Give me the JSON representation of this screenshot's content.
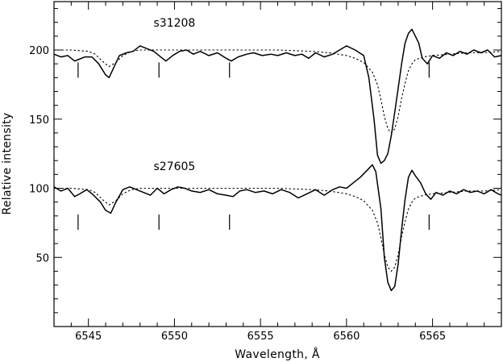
{
  "chart_data": {
    "type": "line",
    "title": "",
    "xlabel": "Wavelength, Å",
    "ylabel": "Relative intensity",
    "xlim": [
      6543,
      6569
    ],
    "ylim": [
      0,
      235
    ],
    "x_major_ticks": [
      6545,
      6550,
      6555,
      6560,
      6565
    ],
    "x_minor_step": 1,
    "y_major_ticks": [
      50,
      100,
      150,
      200
    ],
    "y_minor_step": 10,
    "grid": false,
    "legend": "none",
    "line_markers_x": [
      6544.4,
      6549.1,
      6553.2,
      6564.8
    ],
    "series": [
      {
        "name": "s31208",
        "label_pos": {
          "x": 6550,
          "y": 217
        },
        "marker_range": [
          180,
          191
        ],
        "observed": {
          "x": [
            6543.0,
            6543.4,
            6543.8,
            6544.2,
            6544.4,
            6544.8,
            6545.2,
            6545.6,
            6546.0,
            6546.2,
            6546.5,
            6546.8,
            6547.2,
            6547.6,
            6548.0,
            6548.4,
            6548.8,
            6549.2,
            6549.5,
            6549.9,
            6550.3,
            6550.7,
            6551.1,
            6551.5,
            6552.0,
            6552.5,
            6553.0,
            6553.3,
            6553.7,
            6554.2,
            6554.6,
            6555.1,
            6555.6,
            6556.0,
            6556.5,
            6557.0,
            6557.4,
            6557.8,
            6558.2,
            6558.7,
            6559.2,
            6559.6,
            6560.0,
            6560.5,
            6561.0,
            6561.3,
            6561.6,
            6561.8,
            6562.0,
            6562.2,
            6562.4,
            6562.6,
            6562.8,
            6563.0,
            6563.2,
            6563.4,
            6563.6,
            6563.8,
            6564.0,
            6564.2,
            6564.4,
            6564.7,
            6565.0,
            6565.4,
            6565.8,
            6566.2,
            6566.6,
            6567.0,
            6567.4,
            6567.8,
            6568.2,
            6568.6,
            6569.0
          ],
          "y": [
            197,
            195,
            196,
            192,
            193,
            195,
            195,
            190,
            182,
            180,
            188,
            196,
            198,
            199,
            203,
            201,
            199,
            195,
            192,
            196,
            199,
            200,
            197,
            199,
            196,
            198,
            194,
            192,
            195,
            197,
            198,
            196,
            197,
            196,
            198,
            196,
            197,
            194,
            198,
            195,
            197,
            200,
            203,
            200,
            196,
            180,
            150,
            124,
            118,
            120,
            125,
            138,
            155,
            172,
            190,
            205,
            212,
            215,
            210,
            205,
            194,
            190,
            196,
            194,
            198,
            196,
            199,
            197,
            200,
            198,
            200,
            195,
            196
          ]
        },
        "model": {
          "x": [
            6543.0,
            6544.0,
            6545.0,
            6545.4,
            6545.8,
            6546.0,
            6546.2,
            6546.6,
            6547.0,
            6547.5,
            6548.0,
            6550.0,
            6552.0,
            6554.0,
            6556.0,
            6558.0,
            6559.0,
            6560.0,
            6560.5,
            6561.0,
            6561.5,
            6561.8,
            6562.0,
            6562.2,
            6562.4,
            6562.6,
            6562.8,
            6563.0,
            6563.2,
            6563.4,
            6563.6,
            6563.8,
            6564.0,
            6564.5,
            6565.0,
            6566.0,
            6567.0,
            6568.0,
            6569.0
          ],
          "y": [
            200,
            200,
            199,
            197,
            192,
            190,
            188,
            191,
            196,
            199,
            200,
            200,
            200,
            200,
            200,
            199,
            198,
            196,
            194,
            191,
            184,
            175,
            164,
            152,
            143,
            140,
            143,
            152,
            165,
            176,
            185,
            190,
            193,
            195,
            196,
            197,
            198,
            198,
            199
          ]
        }
      },
      {
        "name": "s27605",
        "label_pos": {
          "x": 6550,
          "y": 113
        },
        "marker_range": [
          70,
          81
        ],
        "observed": {
          "x": [
            6543.0,
            6543.4,
            6543.8,
            6544.2,
            6544.5,
            6544.9,
            6545.3,
            6545.7,
            6546.0,
            6546.3,
            6546.6,
            6547.0,
            6547.4,
            6547.8,
            6548.2,
            6548.6,
            6549.0,
            6549.4,
            6549.8,
            6550.2,
            6550.6,
            6551.0,
            6551.5,
            6552.0,
            6552.5,
            6553.0,
            6553.4,
            6553.8,
            6554.2,
            6554.7,
            6555.2,
            6555.7,
            6556.2,
            6556.7,
            6557.2,
            6557.7,
            6558.2,
            6558.7,
            6559.2,
            6559.6,
            6560.0,
            6560.4,
            6560.8,
            6561.2,
            6561.5,
            6561.7,
            6562.0,
            6562.2,
            6562.4,
            6562.6,
            6562.8,
            6563.0,
            6563.2,
            6563.4,
            6563.6,
            6563.8,
            6564.0,
            6564.3,
            6564.6,
            6564.9,
            6565.2,
            6565.6,
            6566.0,
            6566.4,
            6566.8,
            6567.2,
            6567.6,
            6568.0,
            6568.4,
            6568.8,
            6569.0
          ],
          "y": [
            101,
            98,
            100,
            94,
            96,
            99,
            95,
            90,
            84,
            82,
            90,
            99,
            101,
            99,
            97,
            95,
            100,
            96,
            99,
            101,
            100,
            98,
            97,
            99,
            96,
            95,
            94,
            98,
            99,
            97,
            98,
            96,
            99,
            97,
            93,
            96,
            99,
            95,
            99,
            101,
            100,
            104,
            108,
            113,
            117,
            112,
            85,
            50,
            32,
            26,
            29,
            45,
            70,
            92,
            108,
            113,
            109,
            104,
            96,
            92,
            97,
            95,
            98,
            96,
            99,
            97,
            98,
            96,
            99,
            96,
            95
          ]
        },
        "model": {
          "x": [
            6543.0,
            6544.0,
            6545.0,
            6545.4,
            6545.8,
            6546.0,
            6546.2,
            6546.6,
            6547.0,
            6547.5,
            6548.0,
            6550.0,
            6552.0,
            6554.0,
            6556.0,
            6558.0,
            6559.0,
            6560.0,
            6560.5,
            6561.0,
            6561.5,
            6561.8,
            6562.0,
            6562.2,
            6562.4,
            6562.6,
            6562.8,
            6563.0,
            6563.2,
            6563.4,
            6563.6,
            6563.8,
            6564.0,
            6564.5,
            6565.0,
            6566.0,
            6567.0,
            6568.0,
            6569.0
          ],
          "y": [
            100,
            100,
            99,
            97,
            92,
            90,
            88,
            91,
            96,
            99,
            100,
            100,
            100,
            100,
            100,
            99,
            98,
            96,
            94,
            91,
            84,
            75,
            64,
            52,
            43,
            40,
            43,
            52,
            65,
            76,
            85,
            90,
            93,
            95,
            96,
            97,
            98,
            98,
            99
          ]
        }
      }
    ]
  }
}
